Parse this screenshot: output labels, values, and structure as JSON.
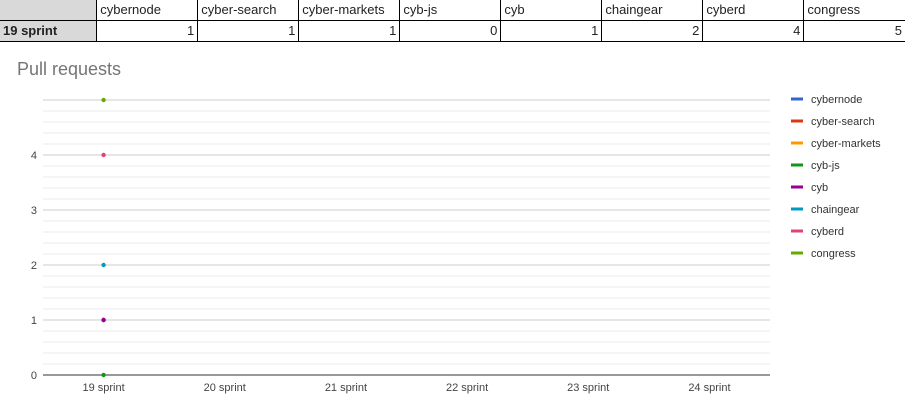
{
  "table": {
    "corner": "",
    "headers": [
      "cybernode",
      "cyber-search",
      "cyber-markets",
      "cyb-js",
      "cyb",
      "chaingear",
      "cyberd",
      "congress"
    ],
    "row_label": "19 sprint",
    "values": [
      "1",
      "1",
      "1",
      "0",
      "1",
      "2",
      "4",
      "5"
    ]
  },
  "chart_data": {
    "type": "scatter",
    "title": "Pull requests",
    "xlabel": "",
    "ylabel": "",
    "categories": [
      "19 sprint",
      "20 sprint",
      "21 sprint",
      "22 sprint",
      "23 sprint",
      "24 sprint"
    ],
    "ylim": [
      0,
      5
    ],
    "y_ticks": [
      0,
      1,
      2,
      3,
      4
    ],
    "grid": true,
    "legend_position": "right",
    "series": [
      {
        "name": "cybernode",
        "color": "#3366cc",
        "values": [
          1
        ]
      },
      {
        "name": "cyber-search",
        "color": "#dc3912",
        "values": [
          1
        ]
      },
      {
        "name": "cyber-markets",
        "color": "#ff9900",
        "values": [
          1
        ]
      },
      {
        "name": "cyb-js",
        "color": "#109618",
        "values": [
          0
        ]
      },
      {
        "name": "cyb",
        "color": "#990099",
        "values": [
          1
        ]
      },
      {
        "name": "chaingear",
        "color": "#0099c6",
        "values": [
          2
        ]
      },
      {
        "name": "cyberd",
        "color": "#dd4477",
        "values": [
          4
        ]
      },
      {
        "name": "congress",
        "color": "#66aa00",
        "values": [
          5
        ]
      }
    ]
  }
}
